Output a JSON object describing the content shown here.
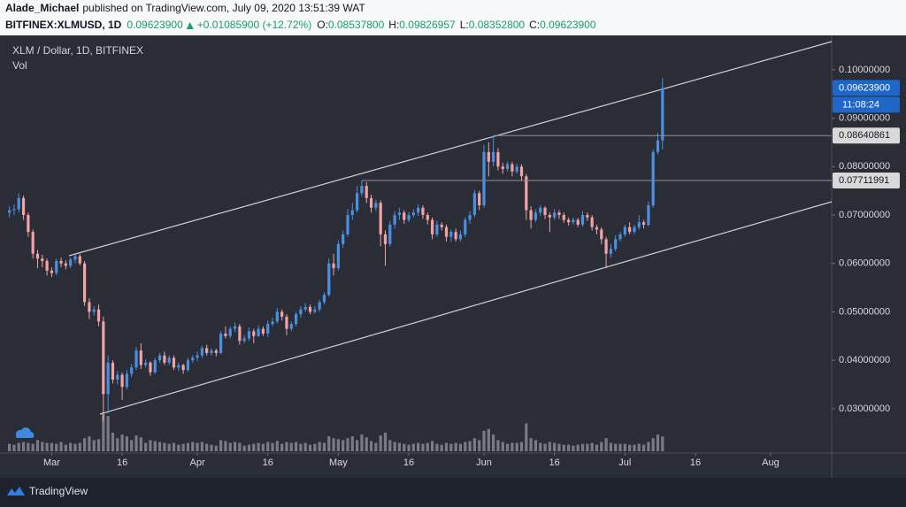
{
  "header": {
    "author": "Alade_Michael",
    "published": "published on TradingView.com, July 09, 2020 13:51:39 WAT",
    "symbol": "BITFINEX:XLMUSD, 1D",
    "last": "0.09623900",
    "change": "+0.01085900 (+12.72%)",
    "open_label": "O:",
    "open": "0.08537800",
    "high_label": "H:",
    "high": "0.09826957",
    "low_label": "L:",
    "low": "0.08352800",
    "close_label": "C:",
    "close": "0.09623900"
  },
  "chart_data": {
    "type": "candlestick",
    "title": "XLM / Dollar, 1D, BITFINEX",
    "volume_label": "Vol",
    "up_color": "#4a90e2",
    "down_color": "#f2a3a3",
    "volume_color": "#9a9ca3",
    "grid": false,
    "ylim": [
      0.0212,
      0.1071
    ],
    "yticks": [
      {
        "value": 0.03,
        "label": "0.03000000"
      },
      {
        "value": 0.04,
        "label": "0.04000000"
      },
      {
        "value": 0.05,
        "label": "0.05000000"
      },
      {
        "value": 0.06,
        "label": "0.06000000"
      },
      {
        "value": 0.07,
        "label": "0.07000000"
      },
      {
        "value": 0.08,
        "label": "0.08000000"
      },
      {
        "value": 0.09,
        "label": "0.09000000"
      },
      {
        "value": 0.1,
        "label": "0.10000000"
      }
    ],
    "xlim": [
      "2020-02-19",
      "2020-08-14"
    ],
    "xticks": [
      {
        "value": "2020-03-01",
        "label": "Mar"
      },
      {
        "value": "2020-03-16",
        "label": "16"
      },
      {
        "value": "2020-04-01",
        "label": "Apr"
      },
      {
        "value": "2020-04-16",
        "label": "16"
      },
      {
        "value": "2020-05-01",
        "label": "May"
      },
      {
        "value": "2020-05-16",
        "label": "16"
      },
      {
        "value": "2020-06-01",
        "label": "Jun"
      },
      {
        "value": "2020-06-16",
        "label": "16"
      },
      {
        "value": "2020-07-01",
        "label": "Jul"
      },
      {
        "value": "2020-07-16",
        "label": "16"
      },
      {
        "value": "2020-08-01",
        "label": "Aug"
      }
    ],
    "price_markers": [
      {
        "value": 0.096239,
        "label": "0.09623900",
        "countdown": "11:08:24",
        "color": "#1e66c8"
      },
      {
        "value": 0.08640861,
        "label": "0.08640861",
        "start": "2020-06-03",
        "color": "#d9d9d9"
      },
      {
        "value": 0.07711991,
        "label": "0.07711991",
        "start": "2020-05-06",
        "color": "#d9d9d9"
      }
    ],
    "x": [
      "2020-02-21",
      "2020-02-22",
      "2020-02-23",
      "2020-02-24",
      "2020-02-25",
      "2020-02-26",
      "2020-02-27",
      "2020-02-28",
      "2020-02-29",
      "2020-03-01",
      "2020-03-02",
      "2020-03-03",
      "2020-03-04",
      "2020-03-05",
      "2020-03-06",
      "2020-03-07",
      "2020-03-08",
      "2020-03-09",
      "2020-03-10",
      "2020-03-11",
      "2020-03-12",
      "2020-03-13",
      "2020-03-14",
      "2020-03-15",
      "2020-03-16",
      "2020-03-17",
      "2020-03-18",
      "2020-03-19",
      "2020-03-20",
      "2020-03-21",
      "2020-03-22",
      "2020-03-23",
      "2020-03-24",
      "2020-03-25",
      "2020-03-26",
      "2020-03-27",
      "2020-03-28",
      "2020-03-29",
      "2020-03-30",
      "2020-03-31",
      "2020-04-01",
      "2020-04-02",
      "2020-04-03",
      "2020-04-04",
      "2020-04-05",
      "2020-04-06",
      "2020-04-07",
      "2020-04-08",
      "2020-04-09",
      "2020-04-10",
      "2020-04-11",
      "2020-04-12",
      "2020-04-13",
      "2020-04-14",
      "2020-04-15",
      "2020-04-16",
      "2020-04-17",
      "2020-04-18",
      "2020-04-19",
      "2020-04-20",
      "2020-04-21",
      "2020-04-22",
      "2020-04-23",
      "2020-04-24",
      "2020-04-25",
      "2020-04-26",
      "2020-04-27",
      "2020-04-28",
      "2020-04-29",
      "2020-04-30",
      "2020-05-01",
      "2020-05-02",
      "2020-05-03",
      "2020-05-04",
      "2020-05-05",
      "2020-05-06",
      "2020-05-07",
      "2020-05-08",
      "2020-05-09",
      "2020-05-10",
      "2020-05-11",
      "2020-05-12",
      "2020-05-13",
      "2020-05-14",
      "2020-05-15",
      "2020-05-16",
      "2020-05-17",
      "2020-05-18",
      "2020-05-19",
      "2020-05-20",
      "2020-05-21",
      "2020-05-22",
      "2020-05-23",
      "2020-05-24",
      "2020-05-25",
      "2020-05-26",
      "2020-05-27",
      "2020-05-28",
      "2020-05-29",
      "2020-05-30",
      "2020-05-31",
      "2020-06-01",
      "2020-06-02",
      "2020-06-03",
      "2020-06-04",
      "2020-06-05",
      "2020-06-06",
      "2020-06-07",
      "2020-06-08",
      "2020-06-09",
      "2020-06-10",
      "2020-06-11",
      "2020-06-12",
      "2020-06-13",
      "2020-06-14",
      "2020-06-15",
      "2020-06-16",
      "2020-06-17",
      "2020-06-18",
      "2020-06-19",
      "2020-06-20",
      "2020-06-21",
      "2020-06-22",
      "2020-06-23",
      "2020-06-24",
      "2020-06-25",
      "2020-06-26",
      "2020-06-27",
      "2020-06-28",
      "2020-06-29",
      "2020-06-30",
      "2020-07-01",
      "2020-07-02",
      "2020-07-03",
      "2020-07-04",
      "2020-07-05",
      "2020-07-06",
      "2020-07-07",
      "2020-07-08",
      "2020-07-09"
    ],
    "open": [
      0.0705,
      0.071,
      0.0712,
      0.0735,
      0.07,
      0.0665,
      0.062,
      0.061,
      0.0605,
      0.0585,
      0.058,
      0.0605,
      0.06,
      0.0595,
      0.0608,
      0.0615,
      0.06,
      0.052,
      0.05,
      0.0505,
      0.048,
      0.033,
      0.0395,
      0.036,
      0.037,
      0.0345,
      0.0372,
      0.0385,
      0.042,
      0.039,
      0.0395,
      0.0375,
      0.04,
      0.041,
      0.0395,
      0.0405,
      0.0385,
      0.039,
      0.038,
      0.04,
      0.0405,
      0.041,
      0.0425,
      0.0415,
      0.042,
      0.0415,
      0.0455,
      0.045,
      0.0465,
      0.047,
      0.044,
      0.0445,
      0.046,
      0.045,
      0.0465,
      0.0455,
      0.0475,
      0.048,
      0.05,
      0.049,
      0.0465,
      0.0475,
      0.0495,
      0.0505,
      0.051,
      0.05,
      0.0505,
      0.052,
      0.0535,
      0.06,
      0.059,
      0.064,
      0.066,
      0.07,
      0.071,
      0.0745,
      0.076,
      0.0735,
      0.0715,
      0.0725,
      0.066,
      0.064,
      0.068,
      0.07,
      0.0705,
      0.069,
      0.07,
      0.0705,
      0.0715,
      0.07,
      0.069,
      0.066,
      0.068,
      0.0675,
      0.0655,
      0.0665,
      0.065,
      0.066,
      0.069,
      0.07,
      0.0745,
      0.072,
      0.083,
      0.081,
      0.083,
      0.08,
      0.0795,
      0.0805,
      0.079,
      0.08,
      0.078,
      0.071,
      0.069,
      0.0705,
      0.0715,
      0.07,
      0.0695,
      0.0705,
      0.07,
      0.069,
      0.0685,
      0.069,
      0.068,
      0.07,
      0.0695,
      0.0675,
      0.067,
      0.065,
      0.062,
      0.063,
      0.065,
      0.066,
      0.0675,
      0.0665,
      0.0675,
      0.0685,
      0.068,
      0.072,
      0.083,
      0.085378
    ],
    "high": [
      0.0718,
      0.0722,
      0.0745,
      0.074,
      0.0705,
      0.067,
      0.0628,
      0.0618,
      0.061,
      0.0592,
      0.061,
      0.0612,
      0.0606,
      0.0612,
      0.0618,
      0.062,
      0.0605,
      0.0528,
      0.0512,
      0.0515,
      0.049,
      0.041,
      0.04,
      0.0378,
      0.0375,
      0.038,
      0.0392,
      0.0428,
      0.0435,
      0.0402,
      0.0398,
      0.0405,
      0.0415,
      0.0418,
      0.041,
      0.041,
      0.0395,
      0.0393,
      0.0405,
      0.041,
      0.0418,
      0.043,
      0.0432,
      0.0425,
      0.0424,
      0.046,
      0.047,
      0.047,
      0.0478,
      0.0475,
      0.0452,
      0.0468,
      0.0465,
      0.0472,
      0.047,
      0.0482,
      0.0488,
      0.0508,
      0.0505,
      0.0495,
      0.048,
      0.05,
      0.0512,
      0.0518,
      0.0515,
      0.0512,
      0.0525,
      0.054,
      0.061,
      0.062,
      0.0648,
      0.0668,
      0.0712,
      0.0725,
      0.076,
      0.0771,
      0.0768,
      0.0742,
      0.0732,
      0.073,
      0.0668,
      0.0688,
      0.0708,
      0.0715,
      0.071,
      0.0706,
      0.0712,
      0.0722,
      0.072,
      0.0705,
      0.0695,
      0.0688,
      0.0685,
      0.068,
      0.067,
      0.0672,
      0.0668,
      0.0695,
      0.0708,
      0.0752,
      0.075,
      0.0845,
      0.085,
      0.0864,
      0.0838,
      0.0808,
      0.081,
      0.081,
      0.0806,
      0.0805,
      0.0785,
      0.0718,
      0.0712,
      0.072,
      0.0718,
      0.0705,
      0.0712,
      0.071,
      0.0705,
      0.0695,
      0.0695,
      0.0694,
      0.0708,
      0.0705,
      0.07,
      0.068,
      0.0675,
      0.0655,
      0.064,
      0.0658,
      0.0665,
      0.068,
      0.0685,
      0.068,
      0.07,
      0.069,
      0.0728,
      0.0835,
      0.087,
      0.09826957
    ],
    "low": [
      0.0695,
      0.07,
      0.0705,
      0.069,
      0.0655,
      0.061,
      0.059,
      0.0592,
      0.0575,
      0.0572,
      0.0576,
      0.0592,
      0.0588,
      0.059,
      0.06,
      0.0596,
      0.0512,
      0.0485,
      0.0492,
      0.047,
      0.0275,
      0.029,
      0.0352,
      0.035,
      0.0318,
      0.034,
      0.0365,
      0.038,
      0.0382,
      0.0385,
      0.0368,
      0.0372,
      0.0395,
      0.039,
      0.039,
      0.038,
      0.0378,
      0.0372,
      0.0376,
      0.0395,
      0.0398,
      0.0405,
      0.041,
      0.041,
      0.0408,
      0.0412,
      0.0445,
      0.0445,
      0.0458,
      0.0432,
      0.0435,
      0.044,
      0.0435,
      0.0448,
      0.045,
      0.0448,
      0.047,
      0.0476,
      0.0482,
      0.0452,
      0.046,
      0.047,
      0.0488,
      0.05,
      0.0495,
      0.0496,
      0.05,
      0.0515,
      0.0532,
      0.0575,
      0.0585,
      0.0632,
      0.0655,
      0.069,
      0.0705,
      0.0738,
      0.0725,
      0.0705,
      0.0708,
      0.0635,
      0.0595,
      0.0635,
      0.0672,
      0.069,
      0.0682,
      0.0685,
      0.0695,
      0.0698,
      0.0692,
      0.068,
      0.065,
      0.0655,
      0.0668,
      0.0645,
      0.0645,
      0.0645,
      0.0645,
      0.0655,
      0.0682,
      0.0695,
      0.071,
      0.0715,
      0.078,
      0.08,
      0.0792,
      0.0785,
      0.079,
      0.078,
      0.0785,
      0.077,
      0.069,
      0.0672,
      0.0685,
      0.0698,
      0.0692,
      0.0665,
      0.069,
      0.0692,
      0.0684,
      0.0678,
      0.068,
      0.0675,
      0.0676,
      0.0688,
      0.0668,
      0.066,
      0.064,
      0.059,
      0.0612,
      0.0625,
      0.0645,
      0.0655,
      0.066,
      0.066,
      0.067,
      0.0672,
      0.0676,
      0.0715,
      0.0825,
      0.083528
    ],
    "close": [
      0.071,
      0.0712,
      0.0735,
      0.07,
      0.0665,
      0.062,
      0.061,
      0.0605,
      0.0585,
      0.058,
      0.0605,
      0.06,
      0.0595,
      0.0608,
      0.0615,
      0.06,
      0.052,
      0.05,
      0.0505,
      0.048,
      0.033,
      0.0395,
      0.036,
      0.037,
      0.0345,
      0.0372,
      0.0385,
      0.042,
      0.039,
      0.0395,
      0.0375,
      0.04,
      0.041,
      0.0395,
      0.0405,
      0.0385,
      0.039,
      0.038,
      0.04,
      0.0405,
      0.041,
      0.0425,
      0.0415,
      0.042,
      0.0415,
      0.0455,
      0.045,
      0.0465,
      0.047,
      0.044,
      0.0445,
      0.046,
      0.045,
      0.0465,
      0.0455,
      0.0475,
      0.048,
      0.05,
      0.049,
      0.0465,
      0.0475,
      0.0495,
      0.0505,
      0.051,
      0.05,
      0.0505,
      0.052,
      0.0535,
      0.06,
      0.059,
      0.064,
      0.066,
      0.07,
      0.071,
      0.0745,
      0.076,
      0.0735,
      0.0715,
      0.0725,
      0.066,
      0.064,
      0.068,
      0.07,
      0.0705,
      0.069,
      0.07,
      0.0705,
      0.0715,
      0.07,
      0.069,
      0.066,
      0.068,
      0.0675,
      0.0655,
      0.0665,
      0.065,
      0.066,
      0.069,
      0.07,
      0.0745,
      0.072,
      0.083,
      0.081,
      0.083,
      0.08,
      0.0795,
      0.0805,
      0.079,
      0.08,
      0.078,
      0.071,
      0.069,
      0.0705,
      0.0715,
      0.07,
      0.0695,
      0.0705,
      0.07,
      0.069,
      0.0685,
      0.069,
      0.068,
      0.07,
      0.0695,
      0.0675,
      0.067,
      0.065,
      0.062,
      0.063,
      0.065,
      0.066,
      0.0675,
      0.0665,
      0.0675,
      0.0685,
      0.068,
      0.072,
      0.083,
      0.0854,
      0.096239
    ],
    "volume": [
      8,
      7,
      9,
      10,
      9,
      8,
      12,
      10,
      9,
      9,
      8,
      10,
      7,
      9,
      8,
      9,
      14,
      16,
      12,
      13,
      40,
      38,
      20,
      14,
      18,
      16,
      12,
      17,
      15,
      9,
      12,
      11,
      10,
      9,
      8,
      9,
      7,
      8,
      9,
      10,
      9,
      10,
      8,
      7,
      6,
      12,
      11,
      9,
      10,
      9,
      6,
      7,
      8,
      9,
      8,
      10,
      9,
      11,
      8,
      10,
      9,
      10,
      8,
      9,
      7,
      8,
      10,
      9,
      16,
      14,
      13,
      12,
      14,
      16,
      12,
      18,
      15,
      11,
      9,
      17,
      20,
      12,
      10,
      9,
      8,
      7,
      8,
      9,
      8,
      9,
      11,
      8,
      7,
      9,
      8,
      9,
      8,
      10,
      11,
      14,
      12,
      22,
      24,
      18,
      12,
      10,
      8,
      9,
      9,
      10,
      30,
      14,
      12,
      9,
      8,
      10,
      9,
      8,
      7,
      7,
      6,
      7,
      8,
      8,
      9,
      7,
      10,
      14,
      9,
      8,
      8,
      8,
      7,
      7,
      8,
      7,
      10,
      14,
      18,
      16
    ]
  }
}
